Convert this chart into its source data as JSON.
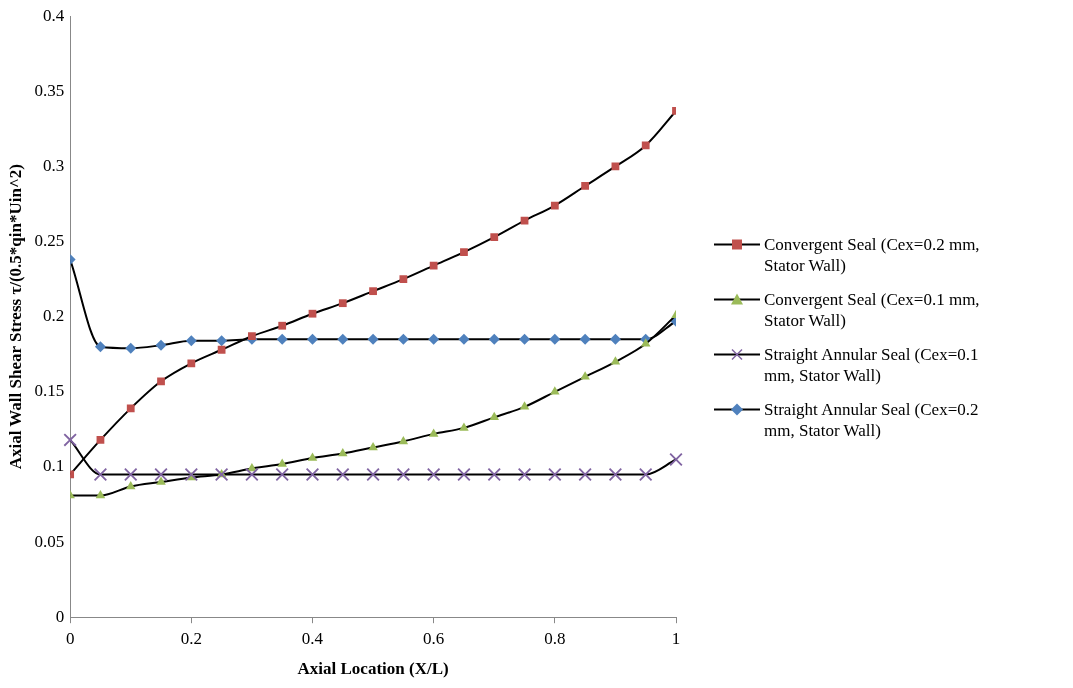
{
  "chart_data": {
    "type": "line",
    "xlabel": "Axial Location (X/L)",
    "ylabel": "Axial Wall Shear Stress τ/(0.5*qin*Uin^2)",
    "x": [
      0,
      0.05,
      0.1,
      0.15,
      0.2,
      0.25,
      0.3,
      0.35,
      0.4,
      0.45,
      0.5,
      0.55,
      0.6,
      0.65,
      0.7,
      0.75,
      0.8,
      0.85,
      0.9,
      0.95,
      1
    ],
    "xlim": [
      0,
      1
    ],
    "xticks": [
      0,
      0.2,
      0.4,
      0.6,
      0.8,
      1
    ],
    "ylim": [
      0,
      0.4
    ],
    "yticks": [
      0,
      0.05,
      0.1,
      0.15,
      0.2,
      0.25,
      0.3,
      0.35,
      0.4
    ],
    "grid": false,
    "legend": "right",
    "line_style": "solid",
    "series": [
      {
        "name": "Convergent Seal (Cex=0.2 mm, Stator Wall)",
        "color": "#c0504d",
        "marker": "square",
        "values": [
          0.095,
          0.118,
          0.139,
          0.157,
          0.169,
          0.178,
          0.187,
          0.194,
          0.202,
          0.209,
          0.217,
          0.225,
          0.234,
          0.243,
          0.253,
          0.264,
          0.274,
          0.287,
          0.3,
          0.314,
          0.337
        ]
      },
      {
        "name": "Convergent Seal (Cex=0.1 mm, Stator Wall)",
        "color": "#9bbb59",
        "marker": "triangle",
        "values": [
          0.081,
          0.081,
          0.087,
          0.09,
          0.093,
          0.095,
          0.099,
          0.102,
          0.106,
          0.109,
          0.113,
          0.117,
          0.122,
          0.126,
          0.133,
          0.14,
          0.15,
          0.16,
          0.17,
          0.182,
          0.201
        ]
      },
      {
        "name": "Straight Annular Seal (Cex=0.1 mm, Stator Wall)",
        "color": "#8064a2",
        "marker": "cross",
        "values": [
          0.118,
          0.095,
          0.095,
          0.095,
          0.095,
          0.095,
          0.095,
          0.095,
          0.095,
          0.095,
          0.095,
          0.095,
          0.095,
          0.095,
          0.095,
          0.095,
          0.095,
          0.095,
          0.095,
          0.095,
          0.105
        ]
      },
      {
        "name": "Straight Annular Seal (Cex=0.2 mm, Stator Wall)",
        "color": "#4f81bd",
        "marker": "diamond",
        "values": [
          0.238,
          0.18,
          0.179,
          0.181,
          0.184,
          0.184,
          0.185,
          0.185,
          0.185,
          0.185,
          0.185,
          0.185,
          0.185,
          0.185,
          0.185,
          0.185,
          0.185,
          0.185,
          0.185,
          0.185,
          0.197
        ]
      }
    ]
  }
}
